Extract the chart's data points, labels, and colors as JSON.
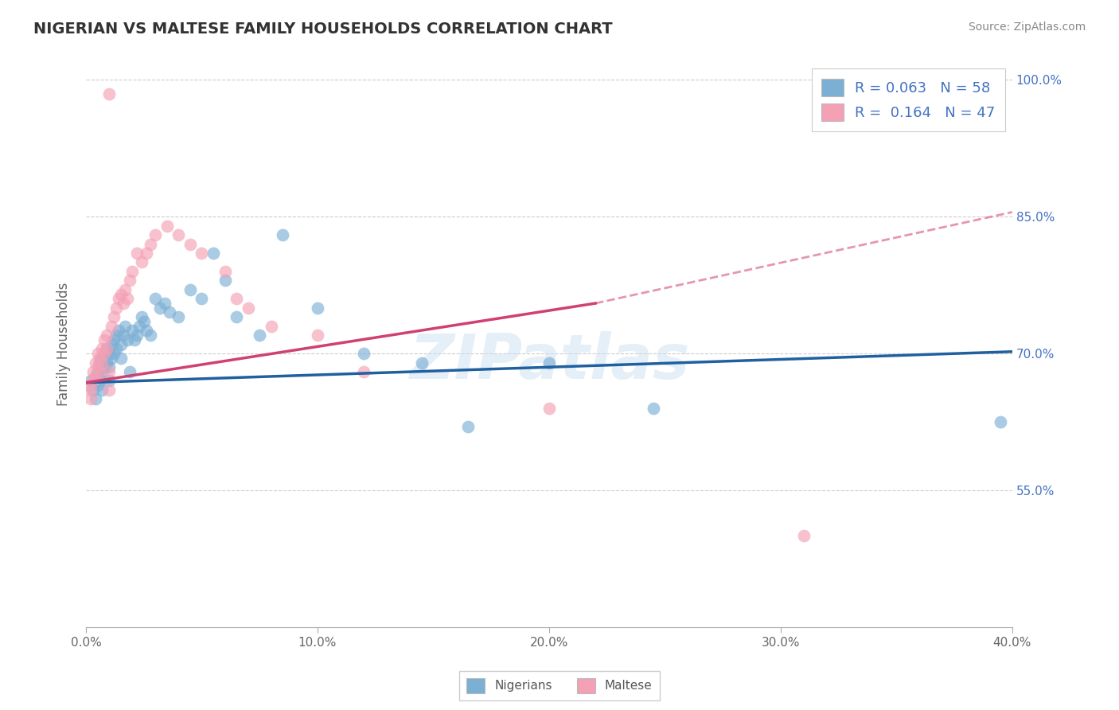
{
  "title": "NIGERIAN VS MALTESE FAMILY HOUSEHOLDS CORRELATION CHART",
  "source_text": "Source: ZipAtlas.com",
  "ylabel": "Family Households",
  "xlabel": "",
  "xlim": [
    0.0,
    0.4
  ],
  "ylim": [
    0.4,
    1.02
  ],
  "yticks": [
    0.55,
    0.7,
    0.85,
    1.0
  ],
  "ytick_labels": [
    "55.0%",
    "70.0%",
    "85.0%",
    "100.0%"
  ],
  "xticks": [
    0.0,
    0.1,
    0.2,
    0.3,
    0.4
  ],
  "xtick_labels": [
    "0.0%",
    "10.0%",
    "20.0%",
    "30.0%",
    "40.0%"
  ],
  "blue_color": "#7BAFD4",
  "pink_color": "#F4A0B5",
  "trend_blue": "#2060A0",
  "trend_pink": "#D04070",
  "watermark": "ZIPatlas",
  "legend_R_blue": "0.063",
  "legend_N_blue": "58",
  "legend_R_pink": "0.164",
  "legend_N_pink": "47",
  "nigerian_x": [
    0.002,
    0.003,
    0.004,
    0.004,
    0.005,
    0.005,
    0.006,
    0.006,
    0.007,
    0.007,
    0.007,
    0.008,
    0.008,
    0.009,
    0.009,
    0.01,
    0.01,
    0.01,
    0.011,
    0.011,
    0.012,
    0.012,
    0.013,
    0.013,
    0.014,
    0.015,
    0.015,
    0.016,
    0.017,
    0.018,
    0.019,
    0.02,
    0.021,
    0.022,
    0.023,
    0.024,
    0.025,
    0.026,
    0.028,
    0.03,
    0.032,
    0.034,
    0.036,
    0.04,
    0.045,
    0.05,
    0.055,
    0.06,
    0.065,
    0.075,
    0.085,
    0.1,
    0.12,
    0.145,
    0.165,
    0.2,
    0.245,
    0.395
  ],
  "nigerian_y": [
    0.67,
    0.66,
    0.675,
    0.65,
    0.68,
    0.665,
    0.69,
    0.67,
    0.695,
    0.68,
    0.66,
    0.7,
    0.685,
    0.705,
    0.69,
    0.7,
    0.685,
    0.67,
    0.71,
    0.695,
    0.715,
    0.7,
    0.72,
    0.705,
    0.725,
    0.71,
    0.695,
    0.72,
    0.73,
    0.715,
    0.68,
    0.725,
    0.715,
    0.72,
    0.73,
    0.74,
    0.735,
    0.725,
    0.72,
    0.76,
    0.75,
    0.755,
    0.745,
    0.74,
    0.77,
    0.76,
    0.81,
    0.78,
    0.74,
    0.72,
    0.83,
    0.75,
    0.7,
    0.69,
    0.62,
    0.69,
    0.64,
    0.625
  ],
  "maltese_x": [
    0.001,
    0.002,
    0.002,
    0.003,
    0.003,
    0.004,
    0.004,
    0.005,
    0.005,
    0.006,
    0.006,
    0.007,
    0.007,
    0.008,
    0.008,
    0.009,
    0.009,
    0.01,
    0.01,
    0.011,
    0.012,
    0.013,
    0.014,
    0.015,
    0.016,
    0.017,
    0.018,
    0.019,
    0.02,
    0.022,
    0.024,
    0.026,
    0.028,
    0.01,
    0.03,
    0.035,
    0.04,
    0.045,
    0.05,
    0.06,
    0.065,
    0.07,
    0.08,
    0.1,
    0.12,
    0.2,
    0.31
  ],
  "maltese_y": [
    0.665,
    0.66,
    0.65,
    0.68,
    0.67,
    0.69,
    0.675,
    0.7,
    0.685,
    0.695,
    0.68,
    0.705,
    0.69,
    0.715,
    0.7,
    0.72,
    0.705,
    0.66,
    0.68,
    0.73,
    0.74,
    0.75,
    0.76,
    0.765,
    0.755,
    0.77,
    0.76,
    0.78,
    0.79,
    0.81,
    0.8,
    0.81,
    0.82,
    0.985,
    0.83,
    0.84,
    0.83,
    0.82,
    0.81,
    0.79,
    0.76,
    0.75,
    0.73,
    0.72,
    0.68,
    0.64,
    0.5
  ]
}
